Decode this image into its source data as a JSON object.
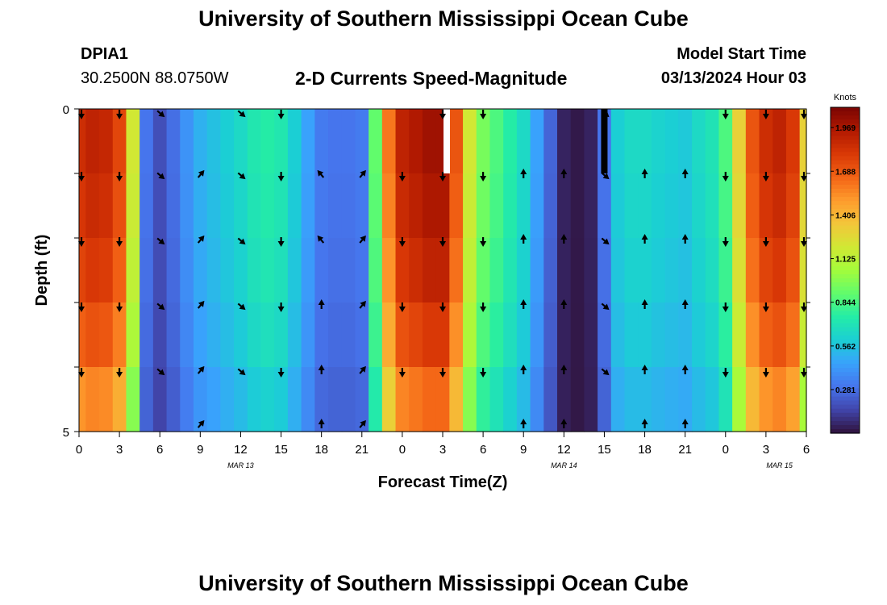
{
  "header": {
    "title": "University of Southern Mississippi Ocean Cube",
    "station": "DPIA1",
    "coords": "30.2500N  88.0750W",
    "subtitle": "2-D Currents Speed-Magnitude",
    "model_start_label": "Model Start Time",
    "model_start_value": "03/13/2024 Hour 03"
  },
  "footer": {
    "title": "University of Southern Mississippi Ocean Cube"
  },
  "chart_data": {
    "type": "heatmap",
    "xlabel": "Forecast Time(Z)",
    "ylabel": "Depth (ft)",
    "x_tick_labels": [
      "0",
      "3",
      "6",
      "9",
      "12",
      "15",
      "18",
      "21",
      "0",
      "3",
      "6",
      "9",
      "12",
      "15",
      "18",
      "21",
      "0",
      "3",
      "6"
    ],
    "date_labels": [
      {
        "label": "MAR 13",
        "at_hour": 12
      },
      {
        "label": "MAR 14",
        "at_hour": 36
      },
      {
        "label": "MAR 15",
        "at_hour": 52
      }
    ],
    "y_range": [
      0,
      5
    ],
    "y_tick_labels": [
      "0",
      "5"
    ],
    "x_range_hours": [
      0,
      54
    ],
    "depth_levels": 5,
    "colorbar": {
      "unit": "Knots",
      "min": 0,
      "max": 2.1,
      "ticks": [
        "1.969",
        "1.688",
        "1.406",
        "1.125",
        "0.844",
        "0.562",
        "0.281"
      ],
      "colors": [
        "#30123b",
        "#4145ab",
        "#4675ed",
        "#39a2fc",
        "#1bcfd4",
        "#24eca6",
        "#61fc6c",
        "#a4fc3b",
        "#d1e834",
        "#f3c63a",
        "#fe9b2d",
        "#f36315",
        "#d93806",
        "#b11901",
        "#7a0403"
      ]
    },
    "speed_profile_knots": {
      "hours": [
        0,
        1,
        2,
        3,
        4,
        5,
        6,
        7,
        8,
        9,
        10,
        11,
        12,
        13,
        14,
        15,
        16,
        17,
        18,
        19,
        20,
        21,
        22,
        23,
        24,
        25,
        26,
        27,
        28,
        29,
        30,
        31,
        32,
        33,
        34,
        35,
        36,
        37,
        38,
        39,
        40,
        41,
        42,
        43,
        44,
        45,
        46,
        47,
        48,
        49,
        50,
        51,
        52,
        53,
        54
      ],
      "values": [
        1.85,
        1.9,
        1.88,
        1.75,
        1.2,
        0.3,
        0.18,
        0.28,
        0.4,
        0.5,
        0.55,
        0.6,
        0.65,
        0.72,
        0.75,
        0.72,
        0.6,
        0.45,
        0.32,
        0.3,
        0.3,
        0.32,
        0.9,
        1.6,
        1.9,
        1.95,
        2.0,
        2.0,
        1.7,
        1.2,
        0.95,
        0.85,
        0.75,
        0.65,
        0.45,
        0.25,
        0.05,
        0.02,
        0.05,
        0.3,
        0.6,
        0.65,
        0.65,
        0.62,
        0.6,
        0.58,
        0.65,
        0.7,
        0.85,
        1.3,
        1.7,
        1.85,
        1.9,
        1.8,
        1.3
      ]
    },
    "depth_factors": [
      1.0,
      0.98,
      0.95,
      0.9,
      0.82
    ],
    "missing_cells": [
      {
        "hour": 27.3,
        "depth": 0,
        "value": "no-data"
      },
      {
        "hour": 39,
        "depth": 0,
        "value": "black"
      }
    ],
    "vectors": {
      "hours": [
        0,
        3,
        6,
        9,
        12,
        15,
        18,
        21,
        24,
        27,
        30,
        33,
        36,
        39,
        42,
        45,
        48,
        51,
        54
      ],
      "depth_rows": [
        [
          "S",
          "S",
          "SE",
          "",
          "SE",
          "S",
          "",
          "",
          "",
          "S",
          "S",
          "",
          "",
          "SE",
          "",
          "",
          "S",
          "S",
          "S"
        ],
        [
          "S",
          "S",
          "SE",
          "NE",
          "SE",
          "S",
          "NW",
          "NE",
          "S",
          "S",
          "S",
          "N",
          "N",
          "SE",
          "N",
          "N",
          "S",
          "S",
          "S"
        ],
        [
          "S",
          "S",
          "SE",
          "NE",
          "SE",
          "S",
          "NW",
          "NE",
          "S",
          "S",
          "S",
          "N",
          "N",
          "SE",
          "N",
          "N",
          "S",
          "S",
          "S"
        ],
        [
          "S",
          "S",
          "SE",
          "NE",
          "SE",
          "S",
          "N",
          "NE",
          "S",
          "S",
          "S",
          "N",
          "N",
          "SE",
          "N",
          "N",
          "S",
          "S",
          "S"
        ],
        [
          "S",
          "S",
          "SE",
          "NE",
          "SE",
          "S",
          "N",
          "NE",
          "S",
          "S",
          "S",
          "N",
          "N",
          "SE",
          "N",
          "N",
          "S",
          "S",
          "S"
        ],
        [
          "",
          "",
          "",
          "NE",
          "",
          "",
          "N",
          "NE",
          "",
          "",
          "",
          "N",
          "N",
          "",
          "N",
          "N",
          "",
          "",
          ""
        ]
      ]
    }
  }
}
